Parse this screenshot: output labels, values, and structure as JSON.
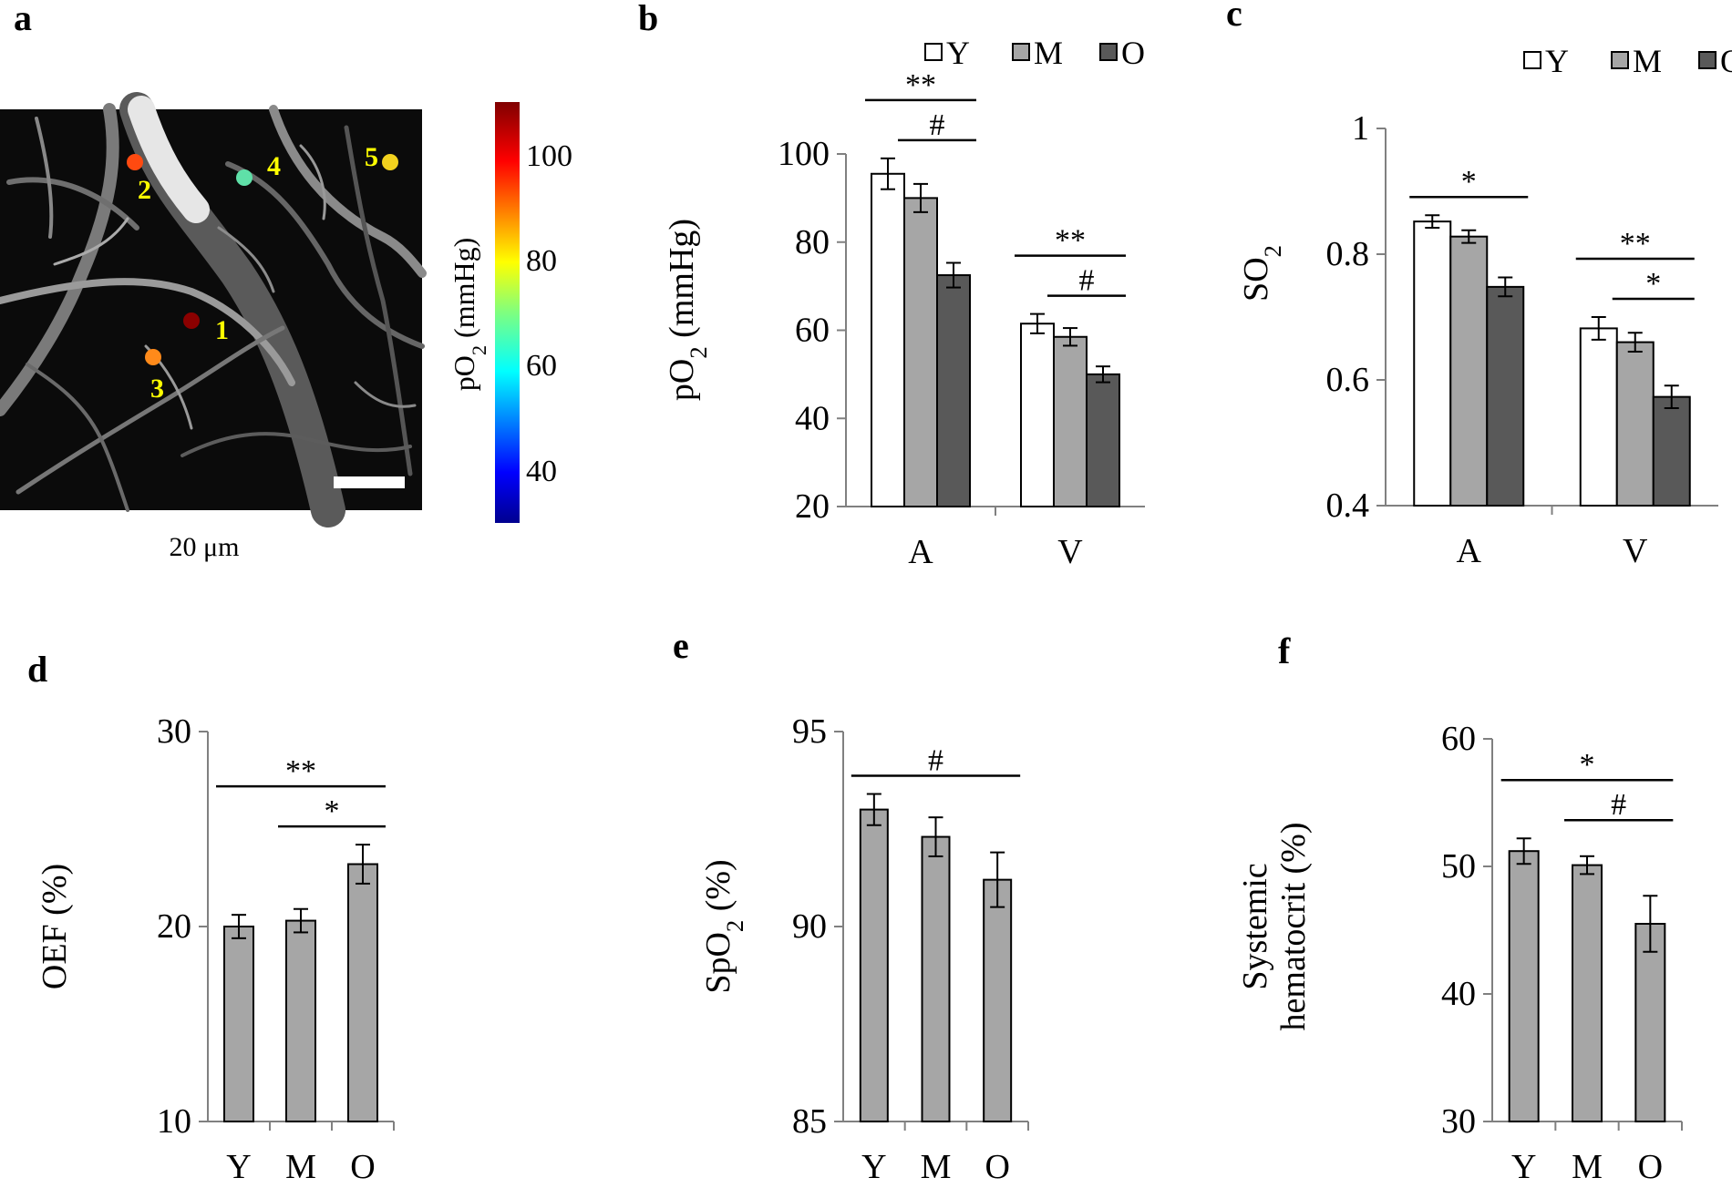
{
  "panels": [
    {
      "id": "a",
      "letter": "a"
    },
    {
      "id": "b",
      "letter": "b"
    },
    {
      "id": "c",
      "letter": "c"
    },
    {
      "id": "d",
      "letter": "d"
    },
    {
      "id": "e",
      "letter": "e"
    },
    {
      "id": "f",
      "letter": "f"
    }
  ],
  "panel_a": {
    "scale_bar_label": "20 μm",
    "colorbar_label": "pO2 (mmHg)",
    "colorbar_range": [
      30,
      110
    ],
    "colorbar_ticks": [
      "100",
      "80",
      "60",
      "40"
    ],
    "points": [
      {
        "label": "1",
        "color": "#8B0000"
      },
      {
        "label": "2",
        "color": "#FF4A10"
      },
      {
        "label": "3",
        "color": "#FF8A1A"
      },
      {
        "label": "4",
        "color": "#5FE0A8"
      },
      {
        "label": "5",
        "color": "#F2D21E"
      }
    ],
    "colors": {
      "point_label": "#FFFF00",
      "background": "#000000"
    }
  },
  "chart_data": [
    {
      "panel": "b",
      "type": "bar",
      "ylabel": "pO2 (mmHg)",
      "xlabel": "",
      "categories": [
        "A",
        "V"
      ],
      "ylim": [
        20,
        100
      ],
      "yticks": [
        "20",
        "40",
        "60",
        "80",
        "100"
      ],
      "legend_position": "top-right",
      "series": [
        {
          "name": "Y",
          "color": "#FFFFFF",
          "values": [
            95.5,
            61.5
          ],
          "errors": [
            3.5,
            2.2
          ]
        },
        {
          "name": "M",
          "color": "#A6A6A6",
          "values": [
            90,
            58.5
          ],
          "errors": [
            3.2,
            2
          ]
        },
        {
          "name": "O",
          "color": "#595959",
          "values": [
            72.5,
            50
          ],
          "errors": [
            2.8,
            1.8
          ]
        }
      ],
      "significance": [
        {
          "label": "**",
          "group": "A",
          "from": "Y",
          "to": "O",
          "level": 1
        },
        {
          "label": "#",
          "group": "A",
          "from": "M",
          "to": "O",
          "level": 0
        },
        {
          "label": "**",
          "group": "V",
          "from": "Y",
          "to": "O",
          "level": 1
        },
        {
          "label": "#",
          "group": "V",
          "from": "M",
          "to": "O",
          "level": 0
        }
      ]
    },
    {
      "panel": "c",
      "type": "bar",
      "ylabel": "SO2",
      "xlabel": "",
      "categories": [
        "A",
        "V"
      ],
      "ylim": [
        0.4,
        1
      ],
      "yticks": [
        "0.4",
        "0.6",
        "0.8",
        "1"
      ],
      "legend_position": "top-right",
      "series": [
        {
          "name": "Y",
          "color": "#FFFFFF",
          "values": [
            0.852,
            0.682
          ],
          "errors": [
            0.01,
            0.018
          ]
        },
        {
          "name": "M",
          "color": "#A6A6A6",
          "values": [
            0.828,
            0.66
          ],
          "errors": [
            0.01,
            0.015
          ]
        },
        {
          "name": "O",
          "color": "#595959",
          "values": [
            0.748,
            0.573
          ],
          "errors": [
            0.015,
            0.018
          ]
        }
      ],
      "significance": [
        {
          "label": "*",
          "group": "A",
          "from": "Y",
          "to": "O",
          "level": 0
        },
        {
          "label": "**",
          "group": "V",
          "from": "Y",
          "to": "O",
          "level": 1
        },
        {
          "label": "*",
          "group": "V",
          "from": "M",
          "to": "O",
          "level": 0
        }
      ]
    },
    {
      "panel": "d",
      "type": "bar",
      "ylabel": "OEF (%)",
      "xlabel": "",
      "categories": [
        "Y",
        "M",
        "O"
      ],
      "ylim": [
        10,
        30
      ],
      "yticks": [
        "10",
        "20",
        "30"
      ],
      "series": [
        {
          "name": "",
          "color": "#A6A6A6",
          "values": [
            20,
            20.3,
            23.2
          ],
          "errors": [
            0.6,
            0.6,
            1
          ]
        }
      ],
      "significance": [
        {
          "label": "**",
          "from": "Y",
          "to": "O",
          "level": 1
        },
        {
          "label": "*",
          "from": "M",
          "to": "O",
          "level": 0
        }
      ]
    },
    {
      "panel": "e",
      "type": "bar",
      "ylabel": "SpO2 (%)",
      "xlabel": "",
      "categories": [
        "Y",
        "M",
        "O"
      ],
      "ylim": [
        85,
        95
      ],
      "yticks": [
        "85",
        "90",
        "95"
      ],
      "series": [
        {
          "name": "",
          "color": "#A6A6A6",
          "values": [
            93,
            92.3,
            91.2
          ],
          "errors": [
            0.4,
            0.5,
            0.7
          ]
        }
      ],
      "significance": [
        {
          "label": "#",
          "from": "Y",
          "to": "O",
          "level": 0
        }
      ]
    },
    {
      "panel": "f",
      "type": "bar",
      "ylabel": "Systemic hematocrit (%)",
      "xlabel": "",
      "ylabel_lines": [
        "Systemic",
        "hematocrit (%)"
      ],
      "categories": [
        "Y",
        "M",
        "O"
      ],
      "ylim": [
        30,
        60
      ],
      "yticks": [
        "30",
        "40",
        "50",
        "60"
      ],
      "series": [
        {
          "name": "",
          "color": "#A6A6A6",
          "values": [
            51.2,
            50.1,
            45.5
          ],
          "errors": [
            1,
            0.7,
            2.2
          ]
        }
      ],
      "significance": [
        {
          "label": "*",
          "from": "Y",
          "to": "O",
          "level": 1
        },
        {
          "label": "#",
          "from": "M",
          "to": "O",
          "level": 0
        }
      ]
    }
  ]
}
